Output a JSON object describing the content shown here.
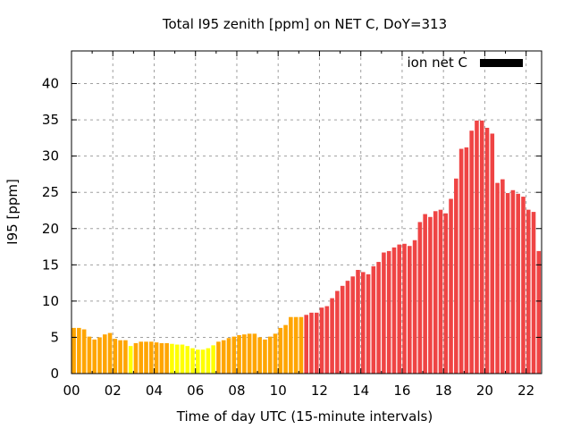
{
  "chart_data": {
    "type": "bar",
    "title": "Total I95 zenith [ppm] on NET C, DoY=313",
    "xlabel": "Time of day UTC (15-minute intervals)",
    "ylabel": "I95 [ppm]",
    "xlim": [
      0,
      22.75
    ],
    "ylim": [
      0,
      44.5
    ],
    "grid": true,
    "legend": {
      "label": "ion net C",
      "placement": "top-right",
      "color": "#000000"
    },
    "xticks": [
      "00",
      "02",
      "04",
      "06",
      "08",
      "10",
      "12",
      "14",
      "16",
      "18",
      "20",
      "22"
    ],
    "yticks": [
      "0",
      "5",
      "10",
      "15",
      "20",
      "25",
      "30",
      "35",
      "40"
    ],
    "ytick_values": [
      0,
      5,
      10,
      15,
      20,
      25,
      30,
      35,
      40
    ],
    "xtick_values": [
      0,
      2,
      4,
      6,
      8,
      10,
      12,
      14,
      16,
      18,
      20,
      22
    ],
    "colors": {
      "low": "#ffff00",
      "mid": "#ffa500",
      "high": "#ef4444"
    },
    "bar_interval_hours": 0.25,
    "values": [
      6.3,
      6.3,
      6.1,
      5.1,
      4.7,
      5.0,
      5.4,
      5.6,
      4.8,
      4.6,
      4.6,
      3.8,
      4.2,
      4.4,
      4.4,
      4.4,
      4.3,
      4.2,
      4.2,
      4.1,
      4.0,
      4.0,
      3.8,
      3.5,
      3.3,
      3.3,
      3.5,
      3.9,
      4.4,
      4.6,
      4.9,
      5.1,
      5.3,
      5.4,
      5.5,
      5.5,
      5.0,
      4.7,
      5.1,
      5.5,
      6.3,
      6.7,
      7.8,
      7.8,
      7.8,
      8.1,
      8.4,
      8.4,
      9.1,
      9.3,
      10.4,
      11.4,
      12.1,
      12.8,
      13.4,
      14.3,
      14.0,
      13.7,
      14.8,
      15.4,
      16.7,
      16.9,
      17.4,
      17.8,
      17.9,
      17.6,
      18.4,
      20.9,
      22.0,
      21.6,
      22.4,
      22.6,
      22.1,
      24.1,
      26.9,
      31.0,
      31.2,
      33.5,
      34.9,
      34.9,
      33.9,
      33.1,
      26.3,
      26.8,
      24.9,
      25.3,
      24.8,
      24.4,
      22.6,
      22.3,
      16.9
    ],
    "color_classes": [
      "mid",
      "mid",
      "mid",
      "mid",
      "mid",
      "mid",
      "mid",
      "mid",
      "mid",
      "mid",
      "mid",
      "low",
      "mid",
      "mid",
      "mid",
      "mid",
      "mid",
      "mid",
      "mid",
      "low",
      "low",
      "low",
      "low",
      "low",
      "low",
      "low",
      "low",
      "low",
      "mid",
      "mid",
      "mid",
      "mid",
      "mid",
      "mid",
      "mid",
      "mid",
      "mid",
      "mid",
      "mid",
      "mid",
      "mid",
      "mid",
      "mid",
      "mid",
      "mid",
      "high",
      "high",
      "high",
      "high",
      "high",
      "high",
      "high",
      "high",
      "high",
      "high",
      "high",
      "high",
      "high",
      "high",
      "high",
      "high",
      "high",
      "high",
      "high",
      "high",
      "high",
      "high",
      "high",
      "high",
      "high",
      "high",
      "high",
      "high",
      "high",
      "high",
      "high",
      "high",
      "high",
      "high",
      "high",
      "high",
      "high",
      "high",
      "high",
      "high",
      "high",
      "high",
      "high",
      "high",
      "high",
      "high"
    ]
  }
}
